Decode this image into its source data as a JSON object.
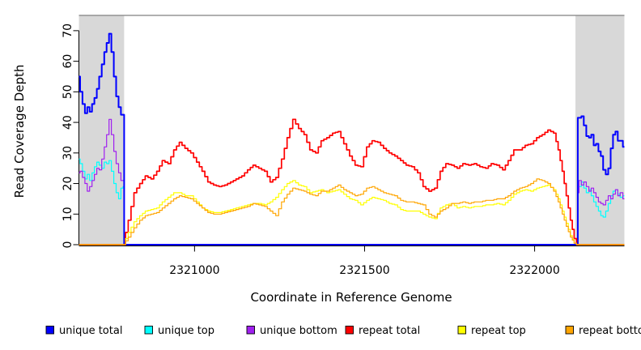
{
  "figure": {
    "background": "#ffffff"
  },
  "chart_data": {
    "type": "line",
    "title": "",
    "xlabel": "Coordinate in Reference Genome",
    "ylabel": "Read Coverage Depth",
    "xlim": [
      2320660,
      2322264
    ],
    "ylim": [
      0,
      75
    ],
    "x_ticks": [
      2321000,
      2321500,
      2322000
    ],
    "y_ticks": [
      0,
      10,
      20,
      30,
      40,
      50,
      60,
      70
    ],
    "grid": "off",
    "legend_position": "bottom",
    "frame_top_color": "#808080",
    "shaded_region_color": "#d8d8d8",
    "shaded_regions": [
      [
        2320660,
        2320793
      ],
      [
        2322120,
        2322264
      ]
    ],
    "x_unique": [
      2320660,
      2320667,
      2320674,
      2320681,
      2320688,
      2320695,
      2320702,
      2320709,
      2320716,
      2320723,
      2320731,
      2320738,
      2320745,
      2320752,
      2320759,
      2320766,
      2320773,
      2320780,
      2320787,
      2320793,
      2320793,
      2322127,
      2322127,
      2322134,
      2322141,
      2322148,
      2322156,
      2322163,
      2322170,
      2322177,
      2322184,
      2322191,
      2322198,
      2322205,
      2322213,
      2322220,
      2322227,
      2322234,
      2322241,
      2322248,
      2322255,
      2322264
    ],
    "x_repeat": [
      2320660,
      2320793,
      2320809,
      2320826,
      2320843,
      2320859,
      2320876,
      2320893,
      2320909,
      2320926,
      2320943,
      2320959,
      2320976,
      2320993,
      2321010,
      2321026,
      2321043,
      2321060,
      2321076,
      2321093,
      2321110,
      2321126,
      2321143,
      2321160,
      2321176,
      2321193,
      2321210,
      2321226,
      2321243,
      2321260,
      2321276,
      2321293,
      2321310,
      2321326,
      2321343,
      2321360,
      2321376,
      2321393,
      2321410,
      2321426,
      2321443,
      2321460,
      2321476,
      2321493,
      2321510,
      2321526,
      2321543,
      2321560,
      2321576,
      2321593,
      2321610,
      2321626,
      2321643,
      2321660,
      2321676,
      2321693,
      2321710,
      2321726,
      2321743,
      2321760,
      2321776,
      2321793,
      2321810,
      2321826,
      2321843,
      2321860,
      2321876,
      2321893,
      2321910,
      2321926,
      2321943,
      2321960,
      2321976,
      2321993,
      2322010,
      2322026,
      2322043,
      2322060,
      2322072,
      2322084,
      2322096,
      2322108,
      2322119,
      2322127,
      2322264
    ],
    "series": [
      {
        "name": "unique total",
        "color": "#0000FF",
        "lwd": 2.0,
        "x": "x_unique",
        "y": [
          55,
          50,
          46,
          43,
          45,
          43.5,
          46,
          48,
          51,
          55,
          59,
          63,
          66,
          69,
          63,
          55,
          48.5,
          45,
          42.5,
          42.5,
          0,
          0,
          41.5,
          41.5,
          42,
          39,
          35.5,
          35,
          36,
          32.5,
          33,
          30.5,
          29,
          24.5,
          23,
          25,
          31.5,
          36,
          37,
          34,
          34,
          32
        ]
      },
      {
        "name": "unique top",
        "color": "#00FFFF",
        "lwd": 1.2,
        "x": "x_unique",
        "y": [
          28,
          26.5,
          24,
          21.5,
          23,
          21,
          23.5,
          25.5,
          27,
          26,
          25,
          27,
          26.5,
          27.5,
          24,
          20,
          17,
          15,
          18.5,
          19,
          0,
          0,
          21,
          19,
          20.5,
          18.5,
          17,
          18,
          16,
          14,
          12.5,
          11,
          9.5,
          9,
          11,
          13.5,
          16,
          17.5,
          18,
          16.5,
          15.5,
          16
        ]
      },
      {
        "name": "unique bottom",
        "color": "#A020F0",
        "lwd": 1.2,
        "x": "x_unique",
        "y": [
          23.5,
          24,
          22,
          20,
          17.5,
          19,
          21,
          23,
          25,
          24.5,
          28,
          32,
          36,
          41,
          36,
          30.5,
          26.5,
          23.5,
          21,
          21,
          0,
          0,
          17,
          21,
          19.5,
          20.5,
          19,
          17.5,
          18.5,
          17,
          15.5,
          14,
          13.5,
          13,
          14.5,
          16,
          15,
          16.5,
          18,
          16,
          17,
          15
        ]
      },
      {
        "name": "repeat total",
        "color": "#FF0000",
        "lwd": 1.7,
        "x": "x_repeat",
        "y": [
          0,
          0,
          8,
          17,
          20,
          22.5,
          21.5,
          24,
          27.5,
          26.5,
          31,
          33.5,
          31.5,
          30,
          27,
          24,
          20.5,
          19.5,
          19,
          19.5,
          20.5,
          21.5,
          22.5,
          24.5,
          26,
          25,
          24,
          20.5,
          22,
          28,
          35,
          41,
          38,
          36,
          31,
          30,
          34,
          35,
          36.5,
          37,
          33,
          29,
          26,
          25.5,
          32,
          34,
          33.5,
          31.5,
          30,
          29,
          27.5,
          26,
          25.5,
          23.5,
          19,
          17.5,
          18.5,
          24,
          26.5,
          26,
          25,
          26.5,
          26,
          26.5,
          25.5,
          25,
          26.5,
          26,
          24.5,
          27.5,
          31,
          31,
          32.5,
          33,
          35,
          36,
          37.5,
          36.5,
          31,
          24,
          16,
          8,
          2,
          0,
          0
        ]
      },
      {
        "name": "repeat top",
        "color": "#FFFF00",
        "lwd": 1.2,
        "x": "x_repeat",
        "y": [
          0,
          0,
          4,
          7.5,
          9.5,
          11,
          11.5,
          12,
          14,
          15.5,
          17,
          17,
          16,
          16,
          14,
          12,
          11,
          10.5,
          10.5,
          11,
          11.5,
          12,
          12.5,
          13,
          13.5,
          13.5,
          13,
          14,
          15.5,
          18,
          20,
          21,
          19.5,
          19,
          17,
          17.5,
          18,
          17,
          17.5,
          18,
          16.5,
          15,
          14.5,
          13,
          14.5,
          15.5,
          15,
          14.5,
          13.5,
          13,
          11.5,
          11,
          11,
          11,
          10,
          9,
          8.5,
          12,
          13,
          13.5,
          12,
          12.5,
          12,
          12.5,
          12.5,
          13,
          13,
          13.5,
          13,
          14.5,
          16.5,
          17.5,
          18,
          17.5,
          18.5,
          19,
          19.5,
          18,
          15,
          11,
          7,
          3,
          0.5,
          0,
          0
        ]
      },
      {
        "name": "repeat bottom",
        "color": "#FFA500",
        "lwd": 1.2,
        "x": "x_repeat",
        "y": [
          0,
          0,
          2.5,
          5.5,
          8,
          9.5,
          10,
          10.5,
          12,
          13.5,
          15,
          16,
          15.5,
          15,
          13.5,
          12,
          10.5,
          10,
          10,
          10.5,
          11,
          11.5,
          12,
          12.5,
          13.5,
          13,
          12.5,
          11,
          9.5,
          14,
          16.5,
          18.5,
          18,
          17.5,
          16.5,
          16,
          17.5,
          17.5,
          18.5,
          19.5,
          18,
          17,
          16,
          16.5,
          18.5,
          19,
          18,
          17,
          16.5,
          16,
          14.5,
          14,
          14,
          13.5,
          13,
          10,
          9,
          11,
          12,
          13.5,
          13.5,
          14,
          13.5,
          14,
          14,
          14.5,
          14.5,
          15,
          15,
          16,
          17.5,
          18.5,
          19,
          20,
          21.5,
          21,
          20,
          17.5,
          14,
          10,
          6,
          2.5,
          0.5,
          0,
          0
        ]
      }
    ]
  }
}
